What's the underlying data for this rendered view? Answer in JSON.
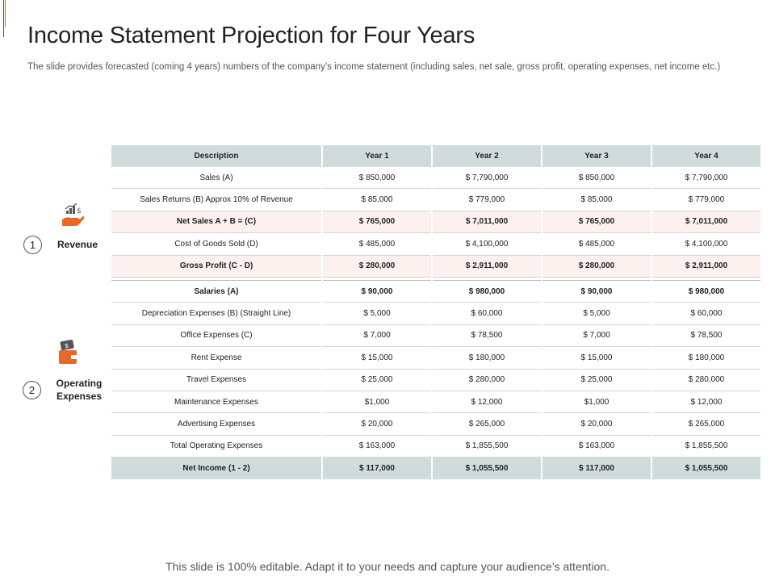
{
  "title": "Income Statement Projection for Four Years",
  "subtitle": "The slide provides forecasted (coming 4 years) numbers of the company’s income statement (including sales, net sale, gross profit, operating expenses, net income etc.)",
  "colors": {
    "accent": "#e8682a",
    "header_fill": "#d0dcdc",
    "highlight_fill": "#fcf1ef",
    "icon_dark": "#555555"
  },
  "sections": [
    {
      "number": "1",
      "label": "Revenue",
      "icon": "hand-growth-icon"
    },
    {
      "number": "2",
      "label_line1": "Operating",
      "label_line2": "Expenses",
      "icon": "wallet-icon"
    }
  ],
  "table": {
    "headers": [
      "Description",
      "Year 1",
      "Year 2",
      "Year 3",
      "Year 4"
    ],
    "revenue_rows": [
      [
        "Sales (A)",
        "$ 850,000",
        "$ 7,790,000",
        "$ 850,000",
        "$ 7,790,000"
      ],
      [
        "Sales Returns (B) Approx 10% of Revenue",
        "$ 85,000",
        "$ 779,000",
        "$ 85,000",
        "$ 779,000"
      ],
      [
        "Net Sales A + B = (C)",
        "$ 765,000",
        "$ 7,011,000",
        "$ 765,000",
        "$ 7,011,000"
      ],
      [
        "Cost of Goods Sold (D)",
        "$ 485,000",
        "$ 4,100,000",
        "$ 485,000",
        "$ 4,100,000"
      ],
      [
        "Gross Profit (C - D)",
        "$ 280,000",
        "$ 2,911,000",
        "$ 280,000",
        "$ 2,911,000"
      ]
    ],
    "expense_rows": [
      [
        "Salaries (A)",
        "$ 90,000",
        "$ 980,000",
        "$ 90,000",
        "$ 980,000"
      ],
      [
        "Depreciation Expenses (B) (Straight Line)",
        "$ 5,000",
        "$ 60,000",
        "$ 5,000",
        "$ 60,000"
      ],
      [
        "Office Expenses (C)",
        "$ 7,000",
        "$ 78,500",
        "$ 7,000",
        "$ 78,500"
      ],
      [
        "Rent Expense",
        "$ 15,000",
        "$ 180,000",
        "$ 15,000",
        "$ 180,000"
      ],
      [
        "Travel Expenses",
        "$ 25,000",
        "$ 280,000",
        "$ 25,000",
        "$ 280,000"
      ],
      [
        "Maintenance Expenses",
        "$1,000",
        "$ 12,000",
        "$1,000",
        "$ 12,000"
      ],
      [
        "Advertising Expenses",
        "$ 20,000",
        "$ 265,000",
        "$ 20,000",
        "$ 265,000"
      ],
      [
        "Total Operating Expenses",
        "$ 163,000",
        "$ 1,855,500",
        "$ 163,000",
        "$ 1,855,500"
      ]
    ],
    "net_income_row": [
      "Net Income (1 - 2)",
      "$ 117,000",
      "$ 1,055,500",
      "$ 117,000",
      "$ 1,055,500"
    ]
  },
  "footer": "This slide is 100% editable. Adapt it to your needs and capture your audience’s attention."
}
